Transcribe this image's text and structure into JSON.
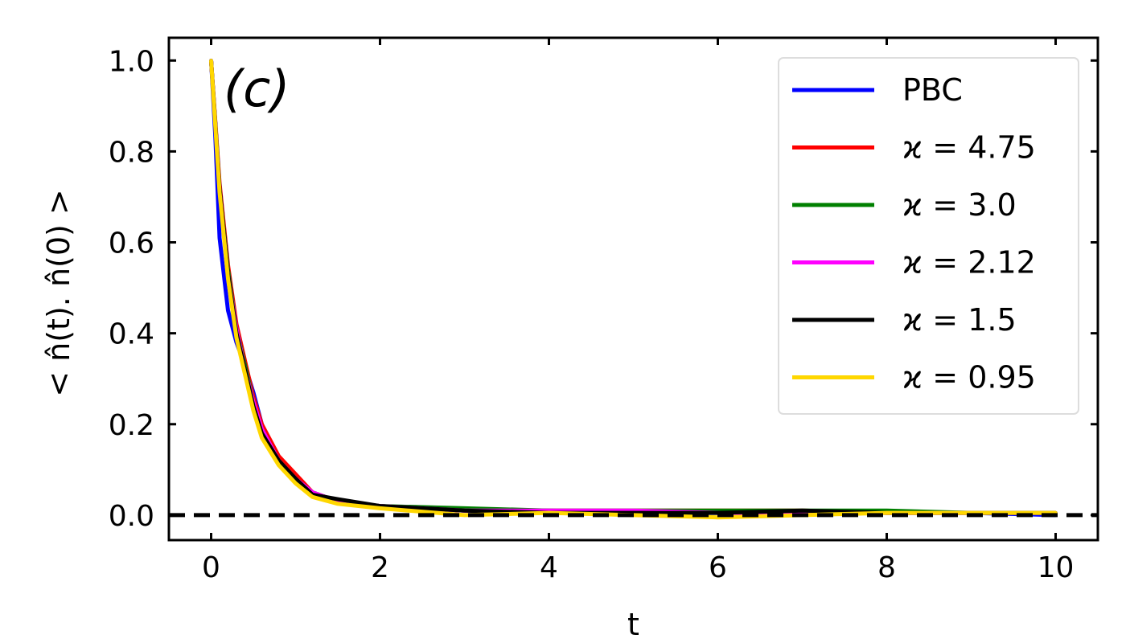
{
  "chart_data": {
    "type": "line",
    "title": "",
    "panel_label": "(c)",
    "xlabel": "t",
    "ylabel": "< n̂(t). n̂(0) >",
    "xlim": [
      -0.5,
      10.5
    ],
    "ylim": [
      -0.055,
      1.05
    ],
    "xticks": [
      0,
      2,
      4,
      6,
      8,
      10
    ],
    "xtick_labels": [
      "0",
      "2",
      "4",
      "6",
      "8",
      "10"
    ],
    "yticks": [
      0.0,
      0.2,
      0.4,
      0.6,
      0.8,
      1.0
    ],
    "ytick_labels": [
      "0.0",
      "0.2",
      "0.4",
      "0.6",
      "0.8",
      "1.0"
    ],
    "grid": false,
    "legend_position": "top-right",
    "reference_line": {
      "y": 0.0,
      "style": "dashed",
      "color": "#000000"
    },
    "series": [
      {
        "name": "PBC",
        "legend_label": "PBC",
        "color": "#0000ff",
        "x": [
          0,
          0.05,
          0.1,
          0.2,
          0.3,
          0.4,
          0.5,
          0.6,
          0.8,
          1.0,
          1.2,
          1.5,
          2.0,
          3.0,
          4.0,
          5.0,
          6.0,
          7.0,
          8.0,
          9.0,
          10.0
        ],
        "y": [
          1.0,
          0.83,
          0.61,
          0.45,
          0.38,
          0.33,
          0.27,
          0.2,
          0.12,
          0.08,
          0.05,
          0.03,
          0.02,
          0.01,
          0.01,
          0.005,
          0.005,
          0.005,
          0.005,
          0.005,
          0.0
        ]
      },
      {
        "name": "κ = 4.75",
        "legend_label": "ϰ = 4.75",
        "color": "#ff0000",
        "x": [
          0,
          0.1,
          0.2,
          0.3,
          0.4,
          0.5,
          0.6,
          0.8,
          1.0,
          1.2,
          1.5,
          2.0,
          3.0,
          4.0,
          5.0,
          6.0,
          7.0,
          8.0,
          9.0,
          10.0
        ],
        "y": [
          1.0,
          0.73,
          0.55,
          0.42,
          0.34,
          0.26,
          0.2,
          0.13,
          0.09,
          0.05,
          0.03,
          0.02,
          0.01,
          0.01,
          0.01,
          0.01,
          0.01,
          0.005,
          0.005,
          0.005
        ]
      },
      {
        "name": "κ = 3.0",
        "legend_label": "ϰ = 3.0",
        "color": "#008000",
        "x": [
          0,
          0.1,
          0.2,
          0.3,
          0.4,
          0.5,
          0.6,
          0.8,
          1.0,
          1.2,
          1.5,
          2.0,
          3.0,
          4.0,
          5.0,
          6.0,
          7.0,
          8.0,
          9.0,
          10.0
        ],
        "y": [
          1.0,
          0.72,
          0.54,
          0.41,
          0.33,
          0.25,
          0.19,
          0.12,
          0.08,
          0.05,
          0.03,
          0.02,
          0.015,
          0.01,
          0.01,
          0.01,
          0.01,
          0.01,
          0.005,
          0.005
        ]
      },
      {
        "name": "κ = 2.12",
        "legend_label": "ϰ = 2.12",
        "color": "#ff00ff",
        "x": [
          0,
          0.1,
          0.2,
          0.3,
          0.4,
          0.5,
          0.6,
          0.8,
          1.0,
          1.2,
          1.5,
          2.0,
          3.0,
          4.0,
          5.0,
          6.0,
          7.0,
          8.0,
          9.0,
          10.0
        ],
        "y": [
          1.0,
          0.72,
          0.53,
          0.41,
          0.32,
          0.25,
          0.19,
          0.12,
          0.08,
          0.05,
          0.03,
          0.02,
          0.01,
          0.01,
          0.01,
          0.005,
          0.005,
          0.005,
          0.005,
          0.005
        ]
      },
      {
        "name": "κ = 1.5",
        "legend_label": "ϰ = 1.5",
        "color": "#000000",
        "x": [
          0,
          0.1,
          0.2,
          0.3,
          0.4,
          0.5,
          0.6,
          0.8,
          1.0,
          1.2,
          1.5,
          2.0,
          3.0,
          4.0,
          5.0,
          6.0,
          7.0,
          8.0,
          9.0,
          10.0
        ],
        "y": [
          1.0,
          0.72,
          0.53,
          0.4,
          0.32,
          0.24,
          0.18,
          0.12,
          0.08,
          0.045,
          0.035,
          0.02,
          0.01,
          0.005,
          0.005,
          0.005,
          0.01,
          0.005,
          0.005,
          0.005
        ]
      },
      {
        "name": "κ = 0.95",
        "legend_label": "ϰ = 0.95",
        "color": "#ffd700",
        "x": [
          0,
          0.1,
          0.2,
          0.3,
          0.4,
          0.5,
          0.6,
          0.8,
          1.0,
          1.2,
          1.5,
          2.0,
          3.0,
          4.0,
          5.0,
          6.0,
          7.0,
          8.0,
          9.0,
          10.0
        ],
        "y": [
          1.0,
          0.71,
          0.52,
          0.39,
          0.31,
          0.23,
          0.17,
          0.11,
          0.07,
          0.04,
          0.025,
          0.015,
          0.0,
          0.005,
          0.0,
          -0.005,
          0.0,
          0.005,
          0.005,
          0.005
        ]
      }
    ]
  }
}
